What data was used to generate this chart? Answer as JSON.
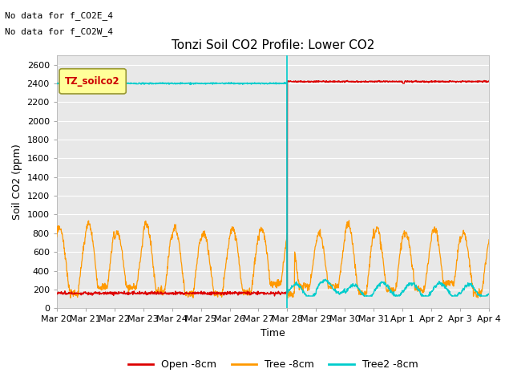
{
  "title": "Tonzi Soil CO2 Profile: Lower CO2",
  "ylabel": "Soil CO2 (ppm)",
  "xlabel": "Time",
  "top_annotations": [
    "No data for f_CO2E_4",
    "No data for f_CO2W_4"
  ],
  "legend_box_label": "TZ_soilco2",
  "ylim": [
    0,
    2700
  ],
  "yticks": [
    0,
    200,
    400,
    600,
    800,
    1000,
    1200,
    1400,
    1600,
    1800,
    2000,
    2200,
    2400,
    2600
  ],
  "x_tick_labels": [
    "Mar 20",
    "Mar 21",
    "Mar 22",
    "Mar 23",
    "Mar 24",
    "Mar 25",
    "Mar 26",
    "Mar 27",
    "Mar 28",
    "Mar 29",
    "Mar 30",
    "Mar 31",
    "Apr 1",
    "Apr 2",
    "Apr 3",
    "Apr 4"
  ],
  "colors": {
    "open": "#dd0000",
    "tree": "#ff9900",
    "tree2": "#00cccc",
    "bg_plot": "#e8e8e8",
    "legend_box_fill": "#ffff99",
    "legend_box_edge": "#999933"
  },
  "legend_labels": [
    "Open -8cm",
    "Tree -8cm",
    "Tree2 -8cm"
  ],
  "background_color": "#ffffff",
  "grid_color": "#ffffff"
}
